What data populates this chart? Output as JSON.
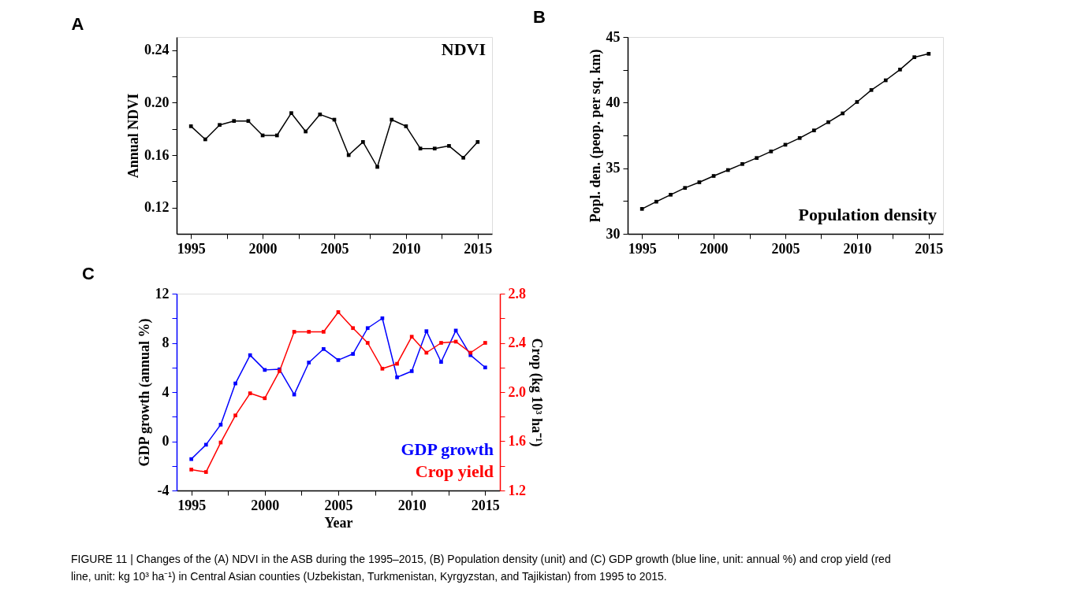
{
  "chart_data": [
    {
      "type": "line",
      "title": "A",
      "ylabel": "Annual NDVI",
      "x": [
        1995,
        1996,
        1997,
        1998,
        1999,
        2000,
        2001,
        2002,
        2003,
        2004,
        2005,
        2006,
        2007,
        2008,
        2009,
        2010,
        2011,
        2012,
        2013,
        2014,
        2015
      ],
      "series": [
        {
          "name": "NDVI",
          "color": "#000000",
          "values": [
            0.182,
            0.172,
            0.183,
            0.186,
            0.186,
            0.175,
            0.175,
            0.192,
            0.178,
            0.191,
            0.187,
            0.16,
            0.17,
            0.151,
            0.187,
            0.182,
            0.165,
            0.165,
            0.167,
            0.158,
            0.17
          ]
        }
      ],
      "xlim": [
        1994,
        2016
      ],
      "xticks": [
        1995,
        {
          "value": 1997.5,
          "label": null
        },
        2000,
        {
          "value": 2002.5,
          "label": null
        },
        2005,
        {
          "value": 2007.5,
          "label": null
        },
        2010,
        {
          "value": 2012.5,
          "label": null
        },
        2015
      ],
      "ylim": [
        0.1,
        0.25
      ],
      "yticks": [
        {
          "value": 0.12,
          "label": "0.12"
        },
        {
          "value": 0.14,
          "label": null
        },
        {
          "value": 0.16,
          "label": "0.16"
        },
        {
          "value": 0.18,
          "label": null
        },
        {
          "value": 0.2,
          "label": "0.20"
        },
        {
          "value": 0.22,
          "label": null
        },
        {
          "value": 0.24,
          "label": "0.24"
        }
      ],
      "grid": false,
      "legend": "top right",
      "marker": "square",
      "line_style": "solid"
    },
    {
      "type": "line",
      "title": "B",
      "ylabel": "Popl. den. (peop. per sq. km)",
      "x": [
        1995,
        1996,
        1997,
        1998,
        1999,
        2000,
        2001,
        2002,
        2003,
        2004,
        2005,
        2006,
        2007,
        2008,
        2009,
        2010,
        2011,
        2012,
        2013,
        2014,
        2015
      ],
      "series": [
        {
          "name": "Population density",
          "color": "#000000",
          "values": [
            31.9,
            32.45,
            32.98,
            33.5,
            33.93,
            34.41,
            34.86,
            35.32,
            35.78,
            36.28,
            36.79,
            37.3,
            37.88,
            38.51,
            39.18,
            40.05,
            40.96,
            41.7,
            42.52,
            43.46,
            43.72
          ]
        }
      ],
      "xlim": [
        1994,
        2016
      ],
      "xticks": [
        1995,
        {
          "value": 1997.5,
          "label": null
        },
        2000,
        {
          "value": 2002.5,
          "label": null
        },
        2005,
        {
          "value": 2007.5,
          "label": null
        },
        2010,
        {
          "value": 2012.5,
          "label": null
        },
        2015
      ],
      "ylim": [
        30,
        45
      ],
      "yticks": [
        30,
        {
          "value": 32.5,
          "label": null
        },
        35,
        {
          "value": 37.5,
          "label": null
        },
        40,
        {
          "value": 42.5,
          "label": null
        },
        45
      ],
      "grid": false,
      "legend": "bottom right",
      "marker": "square",
      "line_style": "solid"
    },
    {
      "type": "line",
      "title": "C",
      "xlabel": "Year",
      "ylabel": "GDP growth (annual %)",
      "y2label": "Crop (kg 10³ ha⁻¹)",
      "x": [
        1995,
        1996,
        1997,
        1998,
        1999,
        2000,
        2001,
        2002,
        2003,
        2004,
        2005,
        2006,
        2007,
        2008,
        2009,
        2010,
        2011,
        2012,
        2013,
        2014,
        2015
      ],
      "series": [
        {
          "name": "GDP growth",
          "color": "#0000ff",
          "values": [
            -1.45,
            -0.28,
            1.35,
            4.7,
            7.0,
            5.8,
            5.85,
            3.8,
            6.4,
            7.5,
            6.6,
            7.1,
            9.2,
            10.0,
            5.2,
            5.7,
            8.95,
            6.45,
            9.0,
            7.0,
            6.0
          ]
        },
        {
          "name": "Crop yield",
          "color": "#ff0000",
          "axis": "y2",
          "values": [
            1.37,
            1.35,
            1.59,
            1.81,
            1.99,
            1.95,
            2.17,
            2.49,
            2.49,
            2.49,
            2.65,
            2.52,
            2.4,
            2.19,
            2.23,
            2.45,
            2.32,
            2.4,
            2.41,
            2.32,
            2.4
          ]
        }
      ],
      "xlim": [
        1994,
        2016
      ],
      "xticks": [
        1995,
        {
          "value": 1997.5,
          "label": null
        },
        2000,
        {
          "value": 2002.5,
          "label": null
        },
        2005,
        {
          "value": 2007.5,
          "label": null
        },
        2010,
        {
          "value": 2012.5,
          "label": null
        },
        2015
      ],
      "ylim": [
        -4,
        12
      ],
      "yticks": [
        -4,
        {
          "value": -2,
          "label": null
        },
        0,
        {
          "value": 2,
          "label": null
        },
        4,
        {
          "value": 6,
          "label": null
        },
        8,
        {
          "value": 10,
          "label": null
        },
        12
      ],
      "y2lim": [
        1.2,
        2.8
      ],
      "y2ticks": [
        {
          "value": 1.2,
          "label": "1.2"
        },
        {
          "value": 1.4,
          "label": null
        },
        {
          "value": 1.6,
          "label": "1.6"
        },
        {
          "value": 1.8,
          "label": null
        },
        {
          "value": 2.0,
          "label": "2.0"
        },
        {
          "value": 2.2,
          "label": null
        },
        {
          "value": 2.4,
          "label": "2.4"
        },
        {
          "value": 2.6,
          "label": null
        },
        {
          "value": 2.8,
          "label": "2.8"
        }
      ],
      "grid": false,
      "legend": "bottom right",
      "marker": "square",
      "line_style": "solid",
      "annotations": [
        "FIGURE 11 | Changes of the (A) NDVI in the ASB during the 1995–2015, (B) Population density (unit) and (C) GDP growth (blue line, unit: annual %) and crop yield (red line, unit: kg 10³ ha⁻¹) in Central Asian counties (Uzbekistan, Turkmenistan, Kyrgyzstan, and Tajikistan) from 1995 to 2015."
      ]
    }
  ]
}
